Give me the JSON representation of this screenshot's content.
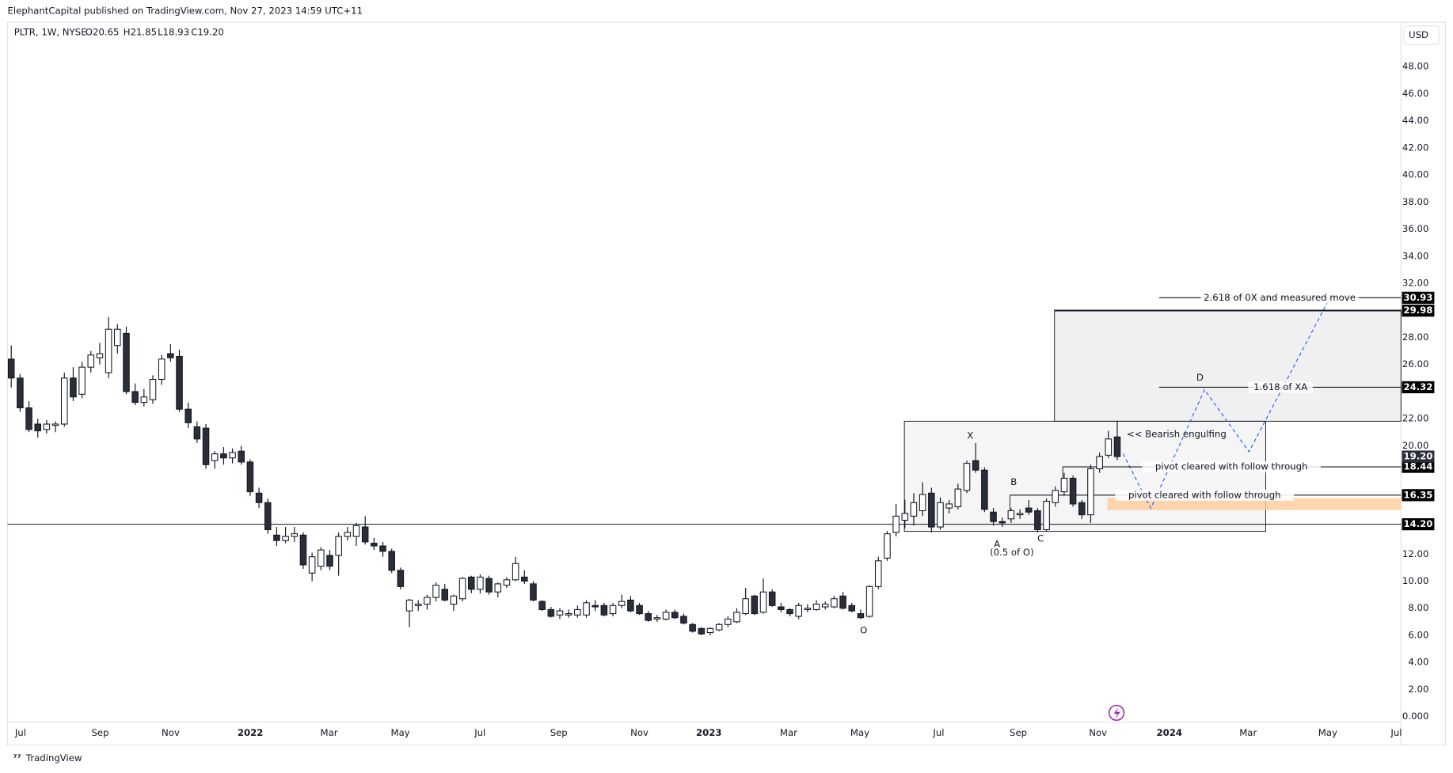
{
  "header": {
    "publisher": "ElephantCapital published on TradingView.com, Nov 27, 2023 14:59 UTC+11",
    "symbol": "PLTR, 1W, NYSE",
    "open": "O20.65",
    "high": "H21.85",
    "low": "L18.93",
    "close": "C19.20",
    "currency": "USD",
    "footer": "TradingView"
  },
  "chart_data": {
    "type": "candlestick",
    "up_color": "#ffffff",
    "down_color": "#2a2e39",
    "ohlc": [
      [
        26.4,
        27.4,
        24.3,
        25.0
      ],
      [
        25.0,
        25.3,
        22.5,
        22.8
      ],
      [
        22.8,
        23.3,
        21.0,
        21.2
      ],
      [
        21.6,
        22.0,
        20.6,
        21.1
      ],
      [
        21.2,
        21.9,
        20.9,
        21.6
      ],
      [
        21.5,
        21.8,
        21.0,
        21.6
      ],
      [
        21.6,
        25.4,
        21.4,
        25.0
      ],
      [
        25.0,
        25.8,
        23.3,
        23.6
      ],
      [
        23.8,
        26.2,
        23.5,
        25.8
      ],
      [
        25.8,
        27.0,
        25.4,
        26.7
      ],
      [
        26.5,
        27.6,
        26.0,
        26.8
      ],
      [
        25.4,
        29.5,
        25.0,
        28.6
      ],
      [
        27.4,
        29.0,
        26.8,
        28.6
      ],
      [
        28.3,
        28.8,
        23.8,
        24.0
      ],
      [
        24.0,
        24.6,
        23.0,
        23.2
      ],
      [
        23.2,
        24.2,
        22.9,
        23.6
      ],
      [
        23.4,
        25.2,
        23.1,
        24.9
      ],
      [
        24.9,
        26.7,
        24.5,
        26.4
      ],
      [
        26.8,
        27.5,
        26.2,
        26.5
      ],
      [
        26.6,
        27.1,
        22.5,
        22.7
      ],
      [
        22.7,
        23.2,
        21.3,
        21.7
      ],
      [
        21.4,
        21.8,
        20.2,
        20.5
      ],
      [
        21.3,
        21.6,
        18.3,
        18.6
      ],
      [
        18.9,
        19.6,
        18.3,
        19.4
      ],
      [
        19.4,
        19.9,
        18.6,
        19.1
      ],
      [
        19.1,
        19.8,
        18.7,
        19.5
      ],
      [
        19.6,
        20.0,
        18.6,
        18.8
      ],
      [
        18.8,
        19.0,
        16.3,
        16.6
      ],
      [
        16.5,
        16.9,
        15.4,
        15.8
      ],
      [
        15.8,
        16.1,
        13.5,
        13.8
      ],
      [
        13.4,
        14.0,
        12.6,
        13.0
      ],
      [
        13.0,
        14.0,
        12.8,
        13.3
      ],
      [
        13.3,
        14.0,
        12.9,
        13.5
      ],
      [
        13.4,
        13.6,
        10.9,
        11.2
      ],
      [
        10.6,
        12.1,
        10.0,
        11.8
      ],
      [
        11.1,
        12.5,
        10.8,
        12.3
      ],
      [
        11.9,
        12.3,
        10.8,
        11.1
      ],
      [
        11.9,
        13.6,
        10.4,
        13.3
      ],
      [
        13.3,
        14.0,
        13.0,
        13.6
      ],
      [
        13.3,
        14.3,
        12.6,
        14.1
      ],
      [
        14.0,
        14.8,
        12.7,
        12.9
      ],
      [
        12.8,
        13.2,
        12.3,
        12.6
      ],
      [
        12.6,
        12.9,
        11.8,
        12.2
      ],
      [
        12.2,
        12.4,
        10.6,
        10.8
      ],
      [
        10.8,
        11.0,
        9.4,
        9.6
      ],
      [
        7.8,
        8.7,
        6.6,
        8.6
      ],
      [
        8.2,
        8.6,
        7.8,
        8.3
      ],
      [
        8.3,
        9.0,
        7.9,
        8.8
      ],
      [
        8.8,
        9.9,
        8.5,
        9.7
      ],
      [
        9.4,
        9.8,
        8.5,
        8.6
      ],
      [
        8.3,
        9.0,
        7.8,
        8.9
      ],
      [
        8.7,
        10.3,
        8.5,
        10.2
      ],
      [
        10.3,
        10.4,
        9.1,
        9.4
      ],
      [
        9.4,
        10.5,
        9.1,
        10.3
      ],
      [
        10.2,
        10.4,
        9.0,
        9.2
      ],
      [
        9.2,
        9.9,
        8.8,
        9.8
      ],
      [
        9.7,
        10.3,
        9.5,
        10.1
      ],
      [
        10.1,
        11.8,
        10.0,
        11.3
      ],
      [
        10.3,
        10.8,
        9.8,
        10.0
      ],
      [
        9.8,
        10.0,
        8.5,
        8.6
      ],
      [
        8.5,
        8.6,
        7.8,
        7.9
      ],
      [
        7.9,
        8.1,
        7.3,
        7.4
      ],
      [
        7.5,
        8.0,
        7.2,
        7.8
      ],
      [
        7.5,
        7.9,
        7.3,
        7.6
      ],
      [
        7.5,
        8.2,
        7.3,
        7.9
      ],
      [
        7.5,
        8.6,
        7.3,
        8.4
      ],
      [
        8.2,
        8.6,
        7.8,
        8.1
      ],
      [
        8.2,
        8.4,
        7.4,
        7.5
      ],
      [
        7.6,
        8.4,
        7.4,
        8.2
      ],
      [
        8.2,
        9.0,
        8.0,
        8.5
      ],
      [
        8.6,
        8.9,
        7.7,
        7.8
      ],
      [
        8.2,
        8.4,
        7.5,
        7.6
      ],
      [
        7.6,
        7.8,
        7.0,
        7.1
      ],
      [
        7.2,
        7.5,
        7.0,
        7.3
      ],
      [
        7.2,
        7.9,
        7.1,
        7.7
      ],
      [
        7.7,
        7.9,
        7.2,
        7.3
      ],
      [
        7.4,
        7.6,
        6.8,
        6.9
      ],
      [
        6.8,
        6.9,
        6.2,
        6.3
      ],
      [
        6.5,
        6.6,
        6.0,
        6.1
      ],
      [
        6.2,
        6.6,
        6.0,
        6.5
      ],
      [
        6.4,
        6.9,
        6.3,
        6.8
      ],
      [
        6.8,
        7.4,
        6.6,
        7.2
      ],
      [
        7.0,
        8.0,
        6.9,
        7.7
      ],
      [
        7.6,
        9.5,
        7.5,
        8.7
      ],
      [
        8.9,
        9.0,
        7.5,
        7.6
      ],
      [
        7.7,
        10.2,
        7.6,
        9.2
      ],
      [
        9.2,
        9.4,
        8.1,
        8.2
      ],
      [
        8.1,
        8.4,
        7.7,
        7.9
      ],
      [
        7.9,
        8.0,
        7.4,
        7.6
      ],
      [
        7.4,
        8.4,
        7.2,
        8.2
      ],
      [
        7.9,
        8.3,
        7.7,
        8.0
      ],
      [
        7.9,
        8.6,
        7.8,
        8.3
      ],
      [
        8.1,
        8.5,
        7.9,
        8.3
      ],
      [
        8.1,
        8.9,
        8.0,
        8.7
      ],
      [
        8.9,
        9.2,
        7.9,
        8.0
      ],
      [
        8.2,
        8.4,
        7.7,
        7.8
      ],
      [
        7.6,
        7.9,
        7.2,
        7.3
      ],
      [
        7.4,
        9.7,
        7.3,
        9.6
      ],
      [
        9.6,
        11.8,
        9.4,
        11.5
      ],
      [
        11.7,
        13.7,
        11.5,
        13.5
      ],
      [
        13.6,
        15.7,
        13.3,
        14.8
      ],
      [
        14.5,
        16.0,
        13.9,
        15.0
      ],
      [
        14.8,
        16.5,
        14.1,
        15.8
      ],
      [
        15.2,
        17.3,
        14.8,
        16.4
      ],
      [
        16.5,
        16.9,
        13.6,
        14.0
      ],
      [
        14.0,
        16.2,
        13.8,
        15.8
      ],
      [
        15.4,
        16.0,
        15.0,
        15.7
      ],
      [
        15.5,
        17.2,
        15.3,
        16.8
      ],
      [
        16.7,
        18.9,
        16.5,
        18.7
      ],
      [
        18.9,
        20.2,
        18.0,
        18.2
      ],
      [
        18.2,
        18.4,
        15.1,
        15.3
      ],
      [
        15.1,
        15.4,
        14.1,
        14.4
      ],
      [
        14.4,
        14.7,
        14.0,
        14.3
      ],
      [
        14.6,
        15.4,
        14.3,
        15.2
      ],
      [
        14.9,
        15.3,
        14.6,
        15.0
      ],
      [
        15.4,
        16.0,
        14.9,
        15.1
      ],
      [
        15.2,
        15.4,
        13.6,
        13.8
      ],
      [
        13.8,
        16.1,
        13.7,
        15.9
      ],
      [
        15.8,
        17.0,
        15.5,
        16.7
      ],
      [
        16.6,
        18.0,
        16.3,
        17.6
      ],
      [
        17.6,
        17.8,
        15.5,
        15.7
      ],
      [
        15.8,
        16.0,
        14.6,
        14.9
      ],
      [
        14.9,
        18.6,
        14.3,
        18.3
      ],
      [
        18.3,
        19.5,
        18.0,
        19.2
      ],
      [
        19.3,
        21.1,
        19.1,
        20.5
      ],
      [
        20.65,
        21.85,
        18.93,
        19.2
      ]
    ],
    "x_labels": [
      "Jul",
      "Sep",
      "Nov",
      "2022",
      "Mar",
      "May",
      "Jul",
      "Sep",
      "Nov",
      "2023",
      "Mar",
      "May",
      "Jul",
      "Sep",
      "Nov",
      "2024",
      "Mar",
      "May",
      "Jul"
    ],
    "ylim": [
      -0.41,
      51.28
    ],
    "yticks": [
      {
        "value": 0,
        "label": "0.000"
      },
      {
        "value": 2,
        "label": "2.00"
      },
      {
        "value": 4,
        "label": "4.00"
      },
      {
        "value": 6,
        "label": "6.00"
      },
      {
        "value": 8,
        "label": "8.00"
      },
      {
        "value": 10,
        "label": "10.00"
      },
      {
        "value": 12,
        "label": "12.00"
      },
      {
        "value": 20,
        "label": "20.00"
      },
      {
        "value": 22,
        "label": "22.00"
      },
      {
        "value": 26,
        "label": "26.00"
      },
      {
        "value": 28,
        "label": "28.00"
      },
      {
        "value": 32,
        "label": "32.00"
      },
      {
        "value": 34,
        "label": "34.00"
      },
      {
        "value": 36,
        "label": "36.00"
      },
      {
        "value": 38,
        "label": "38.00"
      },
      {
        "value": 40,
        "label": "40.00"
      },
      {
        "value": 42,
        "label": "42.00"
      },
      {
        "value": 44,
        "label": "44.00"
      },
      {
        "value": 46,
        "label": "46.00"
      },
      {
        "value": 48,
        "label": "48.00"
      }
    ],
    "levels": [
      {
        "price": 30.93,
        "note": "2.618 of 0X and measured move"
      },
      {
        "price": 29.98
      },
      {
        "price": 24.32,
        "note": "1.618 of XA"
      },
      {
        "price": 18.44,
        "note": "pivot cleared with follow through"
      },
      {
        "price": 16.35,
        "note": "pivot cleared with follow through"
      },
      {
        "price": {
          "value": 14.2,
          "label": "14.20"
        }
      }
    ],
    "last_price": {
      "value": 19.2,
      "label": "19.20"
    },
    "annotations": [
      "X",
      "A",
      "(0.5 of O)",
      "B",
      "C",
      "O",
      "D",
      "<< Bearish engulfing"
    ]
  }
}
